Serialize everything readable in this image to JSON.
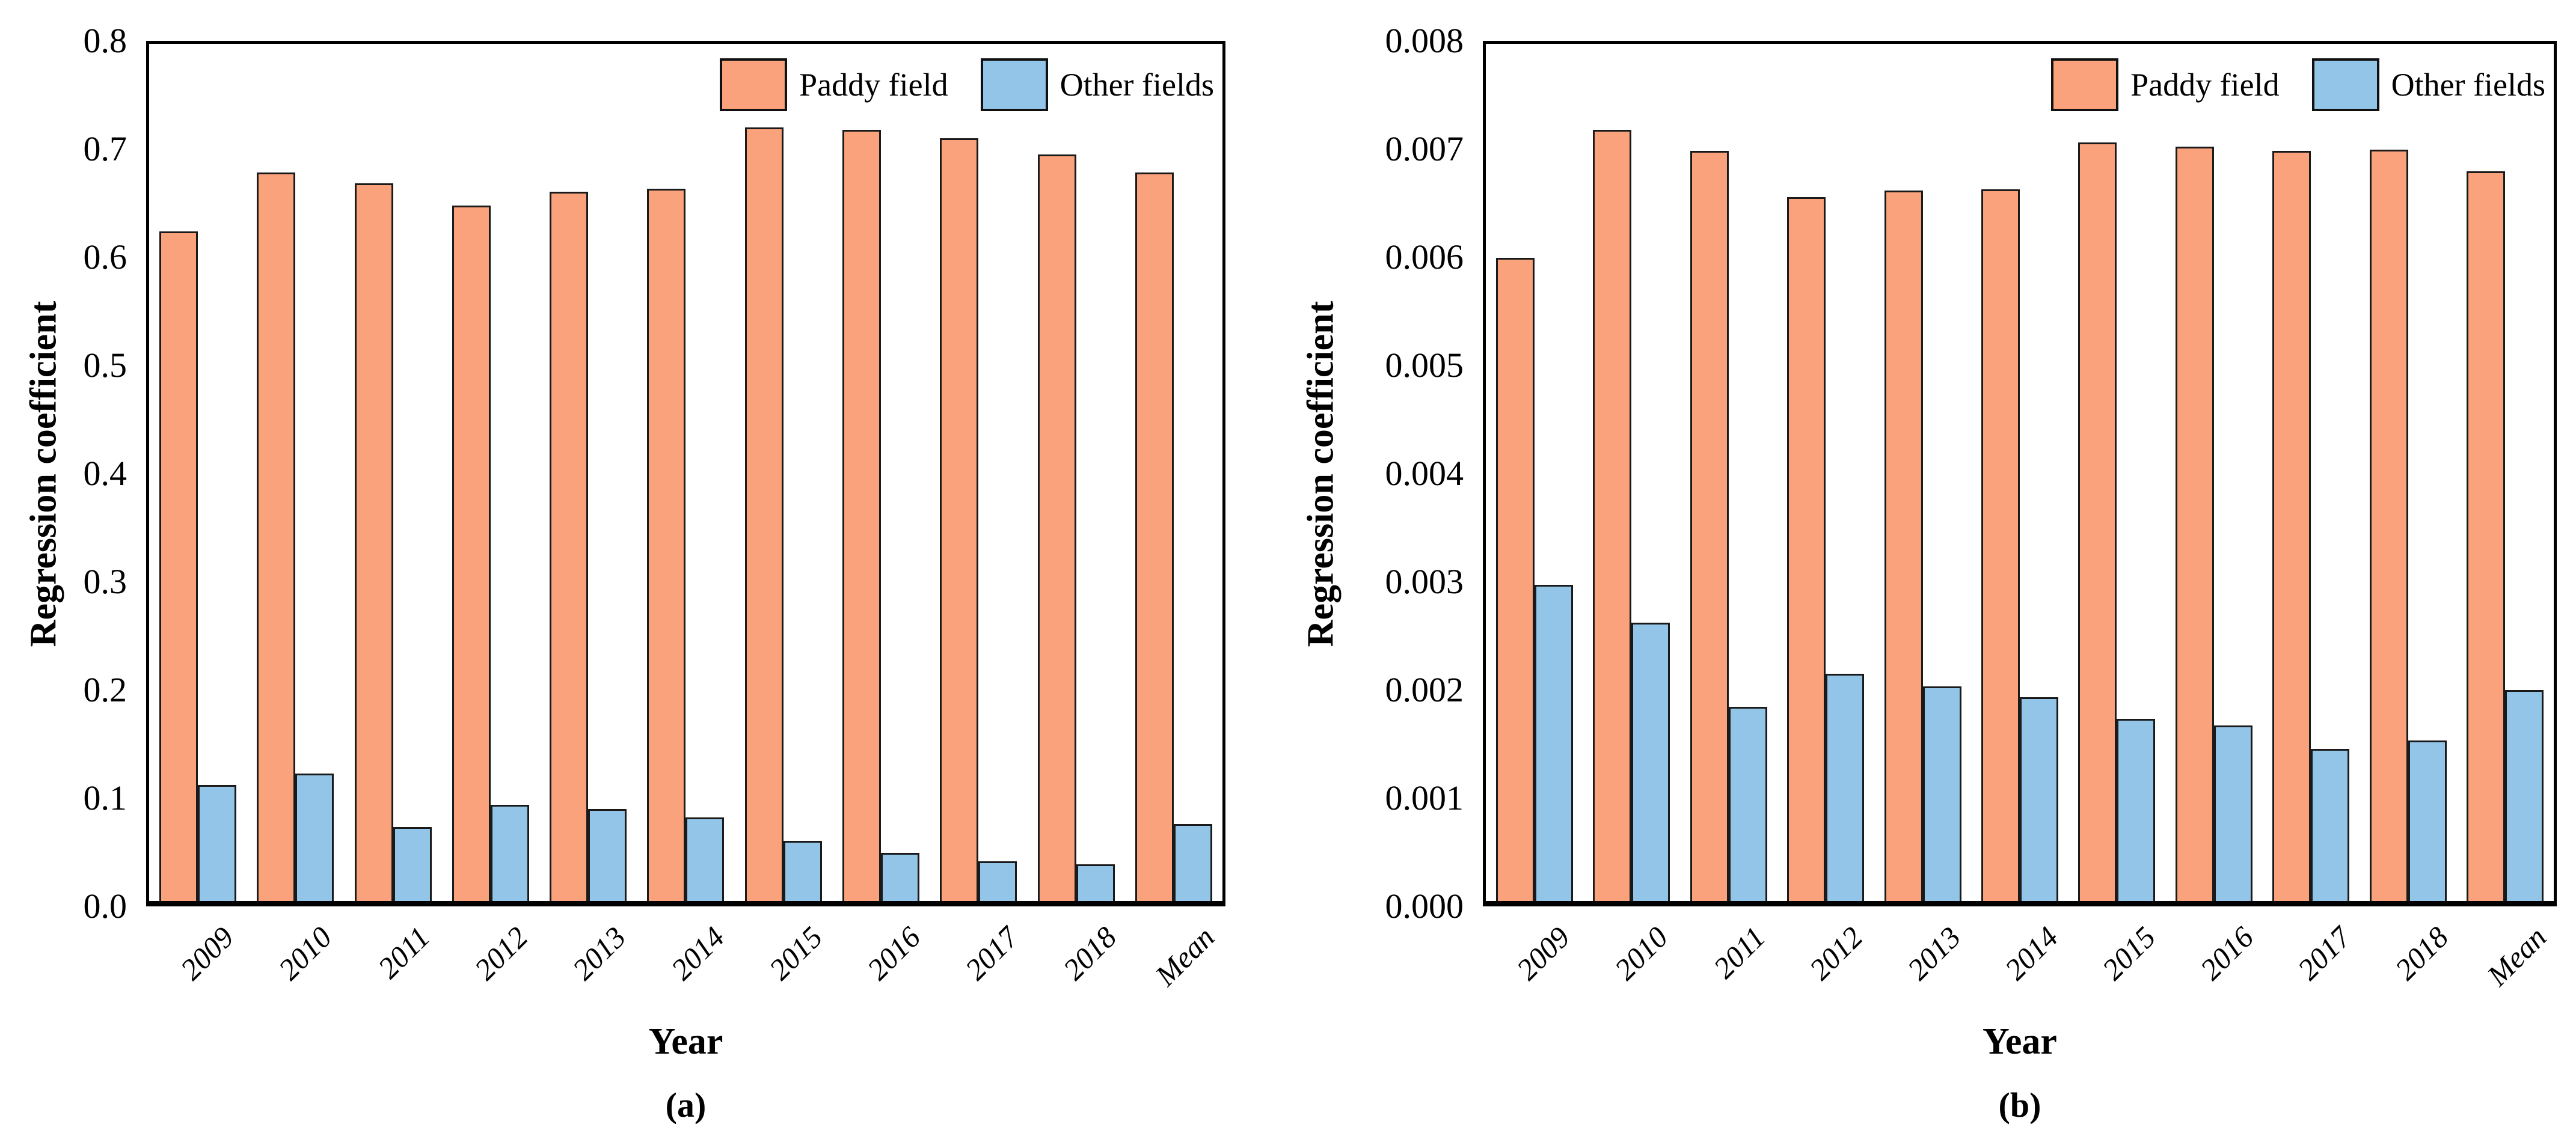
{
  "colors": {
    "paddy_field": "#FAA27B",
    "other_fields": "#93C5E8",
    "bar_border": "#1a1a1a",
    "axis": "#000000"
  },
  "chart_data": [
    {
      "type": "bar",
      "panel": "a",
      "panel_label": "(a)",
      "title": "",
      "xlabel": "Year",
      "ylabel": "Regression coefficient",
      "categories": [
        "2009",
        "2010",
        "2011",
        "2012",
        "2013",
        "2014",
        "2015",
        "2016",
        "2017",
        "2018",
        "Mean"
      ],
      "series": [
        {
          "name": "Paddy field",
          "color": "#FAA27B",
          "values": [
            0.625,
            0.68,
            0.67,
            0.649,
            0.662,
            0.665,
            0.722,
            0.72,
            0.712,
            0.697,
            0.68
          ]
        },
        {
          "name": "Other fields",
          "color": "#93C5E8",
          "values": [
            0.108,
            0.119,
            0.069,
            0.09,
            0.086,
            0.078,
            0.056,
            0.045,
            0.037,
            0.034,
            0.072
          ]
        }
      ],
      "ylim": [
        0,
        0.8
      ],
      "yticks": [
        0.0,
        0.1,
        0.2,
        0.3,
        0.4,
        0.5,
        0.6,
        0.7,
        0.8
      ],
      "ytick_labels": [
        "0.0",
        "0.1",
        "0.2",
        "0.3",
        "0.4",
        "0.5",
        "0.6",
        "0.7",
        "0.8"
      ],
      "legend_position": "upper right",
      "grid": false
    },
    {
      "type": "bar",
      "panel": "b",
      "panel_label": "(b)",
      "title": "",
      "xlabel": "Year",
      "ylabel": "Regression coefficient",
      "categories": [
        "2009",
        "2010",
        "2011",
        "2012",
        "2013",
        "2014",
        "2015",
        "2016",
        "2017",
        "2018",
        "Mean"
      ],
      "series": [
        {
          "name": "Paddy field",
          "color": "#FAA27B",
          "values": [
            0.006,
            0.0072,
            0.007,
            0.00657,
            0.00663,
            0.00664,
            0.00708,
            0.00704,
            0.007,
            0.00701,
            0.00681
          ]
        },
        {
          "name": "Other fields",
          "color": "#93C5E8",
          "values": [
            0.00295,
            0.0026,
            0.00181,
            0.00212,
            0.002,
            0.0019,
            0.0017,
            0.00164,
            0.00142,
            0.0015,
            0.00197
          ]
        }
      ],
      "ylim": [
        0,
        0.008
      ],
      "yticks": [
        0.0,
        0.001,
        0.002,
        0.003,
        0.004,
        0.005,
        0.006,
        0.007,
        0.008
      ],
      "ytick_labels": [
        "0.000",
        "0.001",
        "0.002",
        "0.003",
        "0.004",
        "0.005",
        "0.006",
        "0.007",
        "0.008"
      ],
      "legend_position": "upper right",
      "grid": false
    }
  ]
}
